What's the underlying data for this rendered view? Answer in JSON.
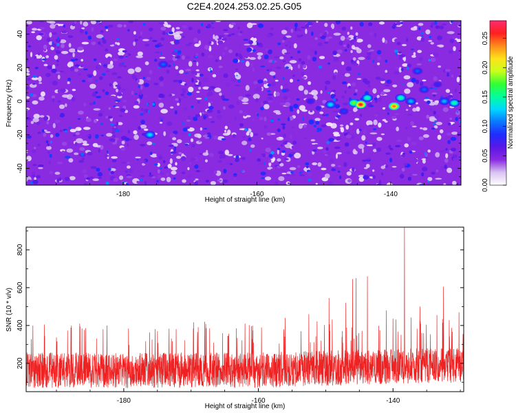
{
  "figure_title": "C2E4.2024.253.02.25.G05",
  "chart_data": [
    {
      "type": "heatmap",
      "title": "C2E4.2024.253.02.25.G05",
      "xlabel": "Height of straight line (km)",
      "ylabel": "Frequency (Hz)",
      "xlim": [
        -194.5,
        -129.5
      ],
      "ylim": [
        -50,
        48
      ],
      "xticks": [
        -180,
        -160,
        -140
      ],
      "yticks": [
        -40,
        -20,
        0,
        20,
        40
      ],
      "colorbar": {
        "label": "Normalized spectral amplitude",
        "range": [
          0.0,
          0.28
        ],
        "ticks": [
          "0.00",
          "0.05",
          "0.10",
          "0.15",
          "0.20",
          "0.25"
        ],
        "colors": [
          "#ffffff",
          "#d9c3f2",
          "#8a2be2",
          "#5a18e6",
          "#1f2cff",
          "#0a78ff",
          "#00d8ff",
          "#00ff9c",
          "#33ff33",
          "#c8ff1a",
          "#ffe21a",
          "#ff8c1a",
          "#ff2020",
          "#ff2a6e"
        ]
      },
      "background_level": 0.04,
      "hotspots": [
        {
          "x": -176,
          "y": -20,
          "value": 0.13
        },
        {
          "x": -174,
          "y": 22,
          "value": 0.1
        },
        {
          "x": -152,
          "y": 0,
          "value": 0.08
        },
        {
          "x": -149,
          "y": -2,
          "value": 0.13
        },
        {
          "x": -147,
          "y": -6,
          "value": 0.09
        },
        {
          "x": -145.5,
          "y": -1,
          "value": 0.18
        },
        {
          "x": -144.5,
          "y": -2,
          "value": 0.26
        },
        {
          "x": -143.5,
          "y": 2,
          "value": 0.15
        },
        {
          "x": -139.5,
          "y": -3,
          "value": 0.24
        },
        {
          "x": -138.5,
          "y": 2,
          "value": 0.15
        },
        {
          "x": -137,
          "y": 0,
          "value": 0.12
        },
        {
          "x": -135,
          "y": 7,
          "value": 0.1
        },
        {
          "x": -132,
          "y": 0,
          "value": 0.12
        },
        {
          "x": -130.5,
          "y": -1,
          "value": 0.15
        },
        {
          "x": -133,
          "y": 10,
          "value": 0.08
        },
        {
          "x": -136,
          "y": 18,
          "value": 0.1
        }
      ]
    },
    {
      "type": "line",
      "xlabel": "Height of straight line (km)",
      "ylabel": "SNR (10 * v/v)",
      "xlim": [
        -194.5,
        -129.5
      ],
      "ylim": [
        50,
        920
      ],
      "xticks": [
        -180,
        -160,
        -140
      ],
      "yticks": [
        200,
        400,
        600,
        800
      ],
      "color": "#ee2222",
      "series": [
        {
          "x_start": -194.5,
          "x_end": -129.5,
          "baseline_mean": 170,
          "noise_range": [
            70,
            320
          ],
          "peaks": [
            {
              "x": -193.5,
              "y": 400
            },
            {
              "x": -191.8,
              "y": 405
            },
            {
              "x": -186.5,
              "y": 395
            },
            {
              "x": -182.5,
              "y": 400
            },
            {
              "x": -175.0,
              "y": 370
            },
            {
              "x": -168.0,
              "y": 420
            },
            {
              "x": -162.0,
              "y": 410
            },
            {
              "x": -156.0,
              "y": 440
            },
            {
              "x": -152.5,
              "y": 460
            },
            {
              "x": -149.5,
              "y": 545
            },
            {
              "x": -147.0,
              "y": 520
            },
            {
              "x": -146.0,
              "y": 645
            },
            {
              "x": -145.5,
              "y": 650
            },
            {
              "x": -143.8,
              "y": 660
            },
            {
              "x": -141.0,
              "y": 480
            },
            {
              "x": -138.3,
              "y": 920
            },
            {
              "x": -136.0,
              "y": 500
            },
            {
              "x": -132.5,
              "y": 605
            },
            {
              "x": -130.2,
              "y": 470
            }
          ]
        }
      ]
    }
  ]
}
